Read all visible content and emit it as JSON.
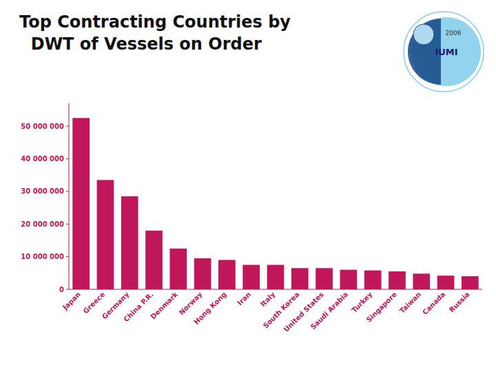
{
  "chart_data": {
    "type": "bar",
    "title": "Top Contracting Countries by",
    "subtitle": "  DWT of Vessels on Order",
    "annotations": [
      "IUMI",
      "2006"
    ],
    "categories": [
      "Japan",
      "Greece",
      "Germany",
      "China P.R.",
      "Denmark",
      "Norway",
      "Hong Kong",
      "Iran",
      "Italy",
      "South Korea",
      "United States",
      "Saudi Arabia",
      "Turkey",
      "Singapore",
      "Taiwan",
      "Canada",
      "Russia"
    ],
    "values": [
      52500000,
      33500000,
      28500000,
      18000000,
      12500000,
      9500000,
      9000000,
      7500000,
      7500000,
      6500000,
      6500000,
      6000000,
      5800000,
      5500000,
      4800000,
      4200000,
      4000000
    ],
    "color": "#C0165A",
    "ylim": [
      0,
      57000000
    ],
    "yticks": [
      0,
      {
        "value": 10000000,
        "label": "10 000 000"
      },
      {
        "value": 20000000,
        "label": "20 000 000"
      },
      {
        "value": 30000000,
        "label": "30 000 000"
      },
      {
        "value": 40000000,
        "label": "40 000 000"
      },
      {
        "value": 50000000,
        "label": "50 000 000"
      }
    ],
    "grid": false
  }
}
